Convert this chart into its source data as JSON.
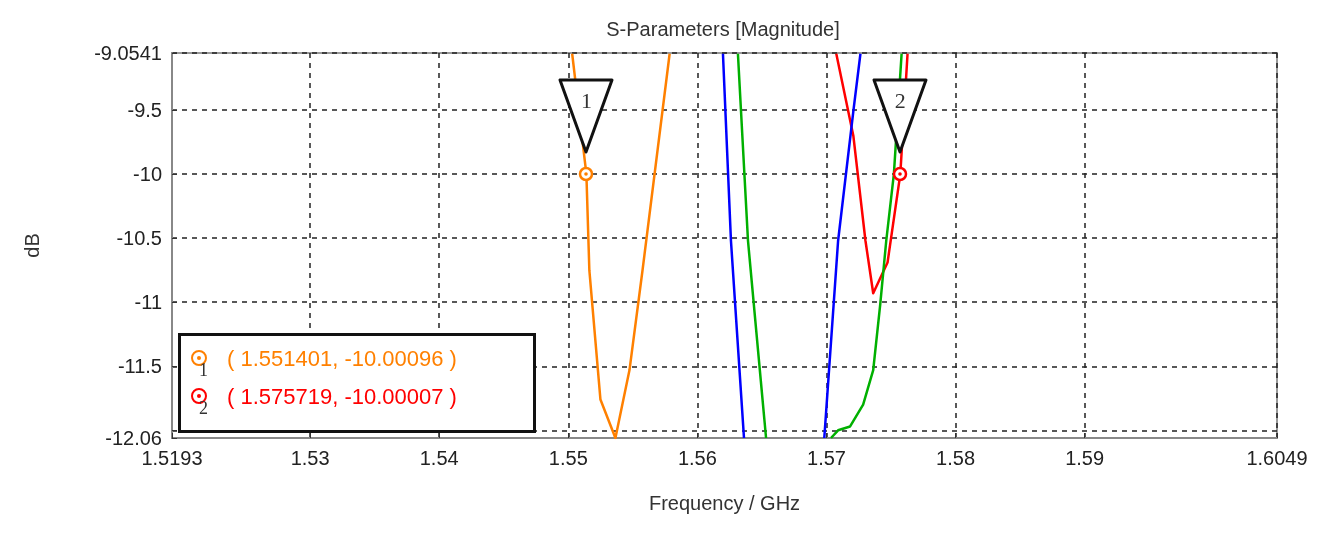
{
  "chart_data": {
    "type": "line",
    "title": "S-Parameters [Magnitude]",
    "xlabel": "Frequency / GHz",
    "ylabel": "dB",
    "xlim": [
      1.5193,
      1.6049
    ],
    "xticks": [
      1.5193,
      1.53,
      1.54,
      1.55,
      1.56,
      1.57,
      1.58,
      1.59,
      1.6049
    ],
    "ylim": [
      -12.06,
      -9.0541
    ],
    "yticks": [
      -9.0541,
      -9.5,
      -10,
      -10.5,
      -11,
      -11.5,
      {
        "value": -12,
        "label": null
      },
      -12.06
    ],
    "grid": true,
    "marker": "none",
    "line_style": "solid",
    "series": [
      {
        "color": "#ff8000",
        "x": [
          1.5503,
          1.551401,
          1.55163,
          1.55249,
          1.55365,
          1.55474,
          1.55575,
          1.55785
        ],
        "values": [
          -9.06,
          -10.0,
          -10.75,
          -11.76,
          -12.06,
          -11.53,
          -10.75,
          -9.06
        ]
      },
      {
        "color": "#ff0000",
        "x": [
          1.57076,
          1.57208,
          1.57302,
          1.57362,
          1.57473,
          1.575719,
          1.57628
        ],
        "values": [
          -9.06,
          -9.7,
          -10.52,
          -10.93,
          -10.69,
          -10.0,
          -9.06
        ]
      },
      {
        "color": "#0000ff",
        "x": [
          1.56198,
          1.5626,
          1.56361,
          1.5667,
          1.56983,
          1.5709,
          1.57208,
          1.57263
        ],
        "values": [
          -9.06,
          -10.52,
          -12.06,
          null,
          -12.06,
          -10.52,
          -9.51,
          -9.06
        ]
      },
      {
        "color": "#00b000",
        "x": [
          1.56314,
          1.56392,
          1.56532,
          1.568,
          1.57035,
          1.5709,
          1.57183,
          1.57284,
          1.57362,
          1.57416,
          1.57463,
          1.57522,
          1.57582
        ],
        "values": [
          -9.06,
          -10.52,
          -12.06,
          null,
          -12.06,
          -12.0,
          -11.97,
          -11.8,
          -11.53,
          -11.02,
          -10.52,
          -10.0,
          -9.06
        ]
      }
    ],
    "annotations": [
      {
        "text": "1",
        "x": 1.551401,
        "y": -10.0
      },
      {
        "text": "2",
        "x": 1.575719,
        "y": -10.0
      },
      "( 1.551401, -10.00096 )",
      "( 1.575719, -10.00007 )"
    ]
  }
}
